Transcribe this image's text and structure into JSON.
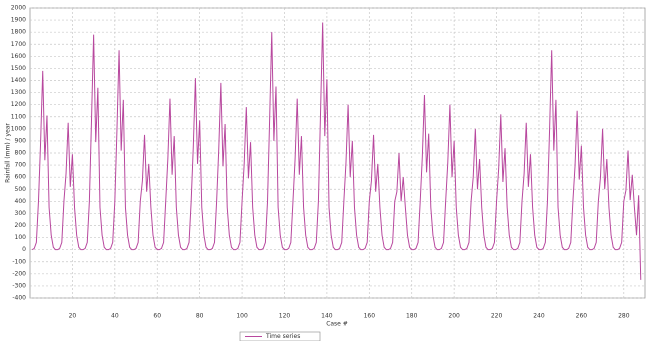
{
  "chart_data": {
    "type": "line",
    "xlabel": "Case #",
    "ylabel": "Rainfall (mm) / year",
    "x": [
      1,
      2,
      3,
      4,
      5,
      6,
      7,
      8,
      9,
      10,
      11,
      12,
      13,
      14,
      15,
      16,
      17,
      18,
      19,
      20,
      21,
      22,
      23,
      24,
      25,
      26,
      27,
      28,
      29,
      30,
      31,
      32,
      33,
      34,
      35,
      36,
      37,
      38,
      39,
      40,
      41,
      42,
      43,
      44,
      45,
      46,
      47,
      48,
      49,
      50,
      51,
      52,
      53,
      54,
      55,
      56,
      57,
      58,
      59,
      60,
      61,
      62,
      63,
      64,
      65,
      66,
      67,
      68,
      69,
      70,
      71,
      72,
      73,
      74,
      75,
      76,
      77,
      78,
      79,
      80,
      81,
      82,
      83,
      84,
      85,
      86,
      87,
      88,
      89,
      90,
      91,
      92,
      93,
      94,
      95,
      96,
      97,
      98,
      99,
      100,
      101,
      102,
      103,
      104,
      105,
      106,
      107,
      108,
      109,
      110,
      111,
      112,
      113,
      114,
      115,
      116,
      117,
      118,
      119,
      120,
      121,
      122,
      123,
      124,
      125,
      126,
      127,
      128,
      129,
      130,
      131,
      132,
      133,
      134,
      135,
      136,
      137,
      138,
      139,
      140,
      141,
      142,
      143,
      144,
      145,
      146,
      147,
      148,
      149,
      150,
      151,
      152,
      153,
      154,
      155,
      156,
      157,
      158,
      159,
      160,
      161,
      162,
      163,
      164,
      165,
      166,
      167,
      168,
      169,
      170,
      171,
      172,
      173,
      174,
      175,
      176,
      177,
      178,
      179,
      180,
      181,
      182,
      183,
      184,
      185,
      186,
      187,
      188,
      189,
      190,
      191,
      192,
      193,
      194,
      195,
      196,
      197,
      198,
      199,
      200,
      201,
      202,
      203,
      204,
      205,
      206,
      207,
      208,
      209,
      210,
      211,
      212,
      213,
      214,
      215,
      216,
      217,
      218,
      219,
      220,
      221,
      222,
      223,
      224,
      225,
      226,
      227,
      228,
      229,
      230,
      231,
      232,
      233,
      234,
      235,
      236,
      237,
      238,
      239,
      240,
      241,
      242,
      243,
      244,
      245,
      246,
      247,
      248,
      249,
      250,
      251,
      252,
      253,
      254,
      255,
      256,
      257,
      258,
      259,
      260,
      261,
      262,
      263,
      264,
      265,
      266,
      267,
      268,
      269,
      270,
      271,
      272,
      273,
      274,
      275,
      276,
      277,
      278,
      279,
      280,
      281,
      282,
      283,
      284,
      285,
      286,
      287,
      288
    ],
    "series": [
      {
        "name": "Time series",
        "color": "#b8489e",
        "values": [
          0,
          10,
          60,
          400,
          890,
          1480,
          740,
          1110,
          350,
          120,
          20,
          0,
          0,
          10,
          60,
          400,
          630,
          1050,
          520,
          790,
          350,
          120,
          20,
          0,
          0,
          10,
          60,
          400,
          1070,
          1780,
          890,
          1340,
          350,
          120,
          20,
          0,
          0,
          10,
          60,
          400,
          990,
          1650,
          820,
          1240,
          350,
          120,
          20,
          0,
          0,
          10,
          60,
          400,
          570,
          950,
          480,
          710,
          350,
          120,
          20,
          0,
          0,
          10,
          60,
          400,
          750,
          1250,
          620,
          940,
          350,
          120,
          20,
          0,
          0,
          10,
          60,
          400,
          850,
          1420,
          710,
          1070,
          350,
          120,
          20,
          0,
          0,
          10,
          60,
          400,
          830,
          1380,
          690,
          1040,
          350,
          120,
          20,
          0,
          0,
          10,
          60,
          400,
          710,
          1180,
          590,
          890,
          350,
          120,
          20,
          0,
          0,
          10,
          60,
          400,
          1080,
          1800,
          900,
          1350,
          350,
          120,
          20,
          0,
          0,
          10,
          60,
          400,
          750,
          1250,
          620,
          940,
          350,
          120,
          20,
          0,
          0,
          10,
          60,
          400,
          1130,
          1880,
          940,
          1410,
          350,
          120,
          20,
          0,
          0,
          10,
          60,
          400,
          720,
          1200,
          600,
          900,
          350,
          120,
          20,
          0,
          0,
          10,
          60,
          400,
          570,
          950,
          480,
          710,
          350,
          120,
          20,
          0,
          0,
          10,
          60,
          400,
          480,
          800,
          400,
          600,
          350,
          120,
          20,
          0,
          0,
          10,
          60,
          400,
          770,
          1280,
          640,
          960,
          350,
          120,
          20,
          0,
          0,
          10,
          60,
          400,
          720,
          1200,
          600,
          900,
          350,
          120,
          20,
          0,
          0,
          10,
          60,
          400,
          600,
          1000,
          500,
          750,
          350,
          120,
          20,
          0,
          0,
          10,
          60,
          400,
          670,
          1120,
          560,
          840,
          350,
          120,
          20,
          0,
          0,
          10,
          60,
          400,
          630,
          1050,
          520,
          790,
          350,
          120,
          20,
          0,
          0,
          10,
          60,
          400,
          990,
          1650,
          820,
          1240,
          350,
          120,
          20,
          0,
          0,
          10,
          60,
          400,
          690,
          1150,
          580,
          860,
          350,
          120,
          20,
          0,
          0,
          10,
          60,
          400,
          600,
          1000,
          500,
          750,
          350,
          120,
          20,
          0,
          0,
          10,
          60,
          400,
          490,
          820,
          410,
          620,
          350,
          120,
          450,
          -250
        ]
      }
    ],
    "xlim": [
      0,
      290
    ],
    "ylim": [
      -400,
      2000
    ],
    "xticks": [
      20,
      40,
      60,
      80,
      100,
      120,
      140,
      160,
      180,
      200,
      220,
      240,
      260,
      280
    ],
    "yticks": [
      -400,
      -300,
      -200,
      -100,
      0,
      100,
      200,
      300,
      400,
      500,
      600,
      700,
      800,
      900,
      1000,
      1100,
      1200,
      1300,
      1400,
      1500,
      1600,
      1700,
      1800,
      1900,
      2000
    ],
    "grid": true
  }
}
